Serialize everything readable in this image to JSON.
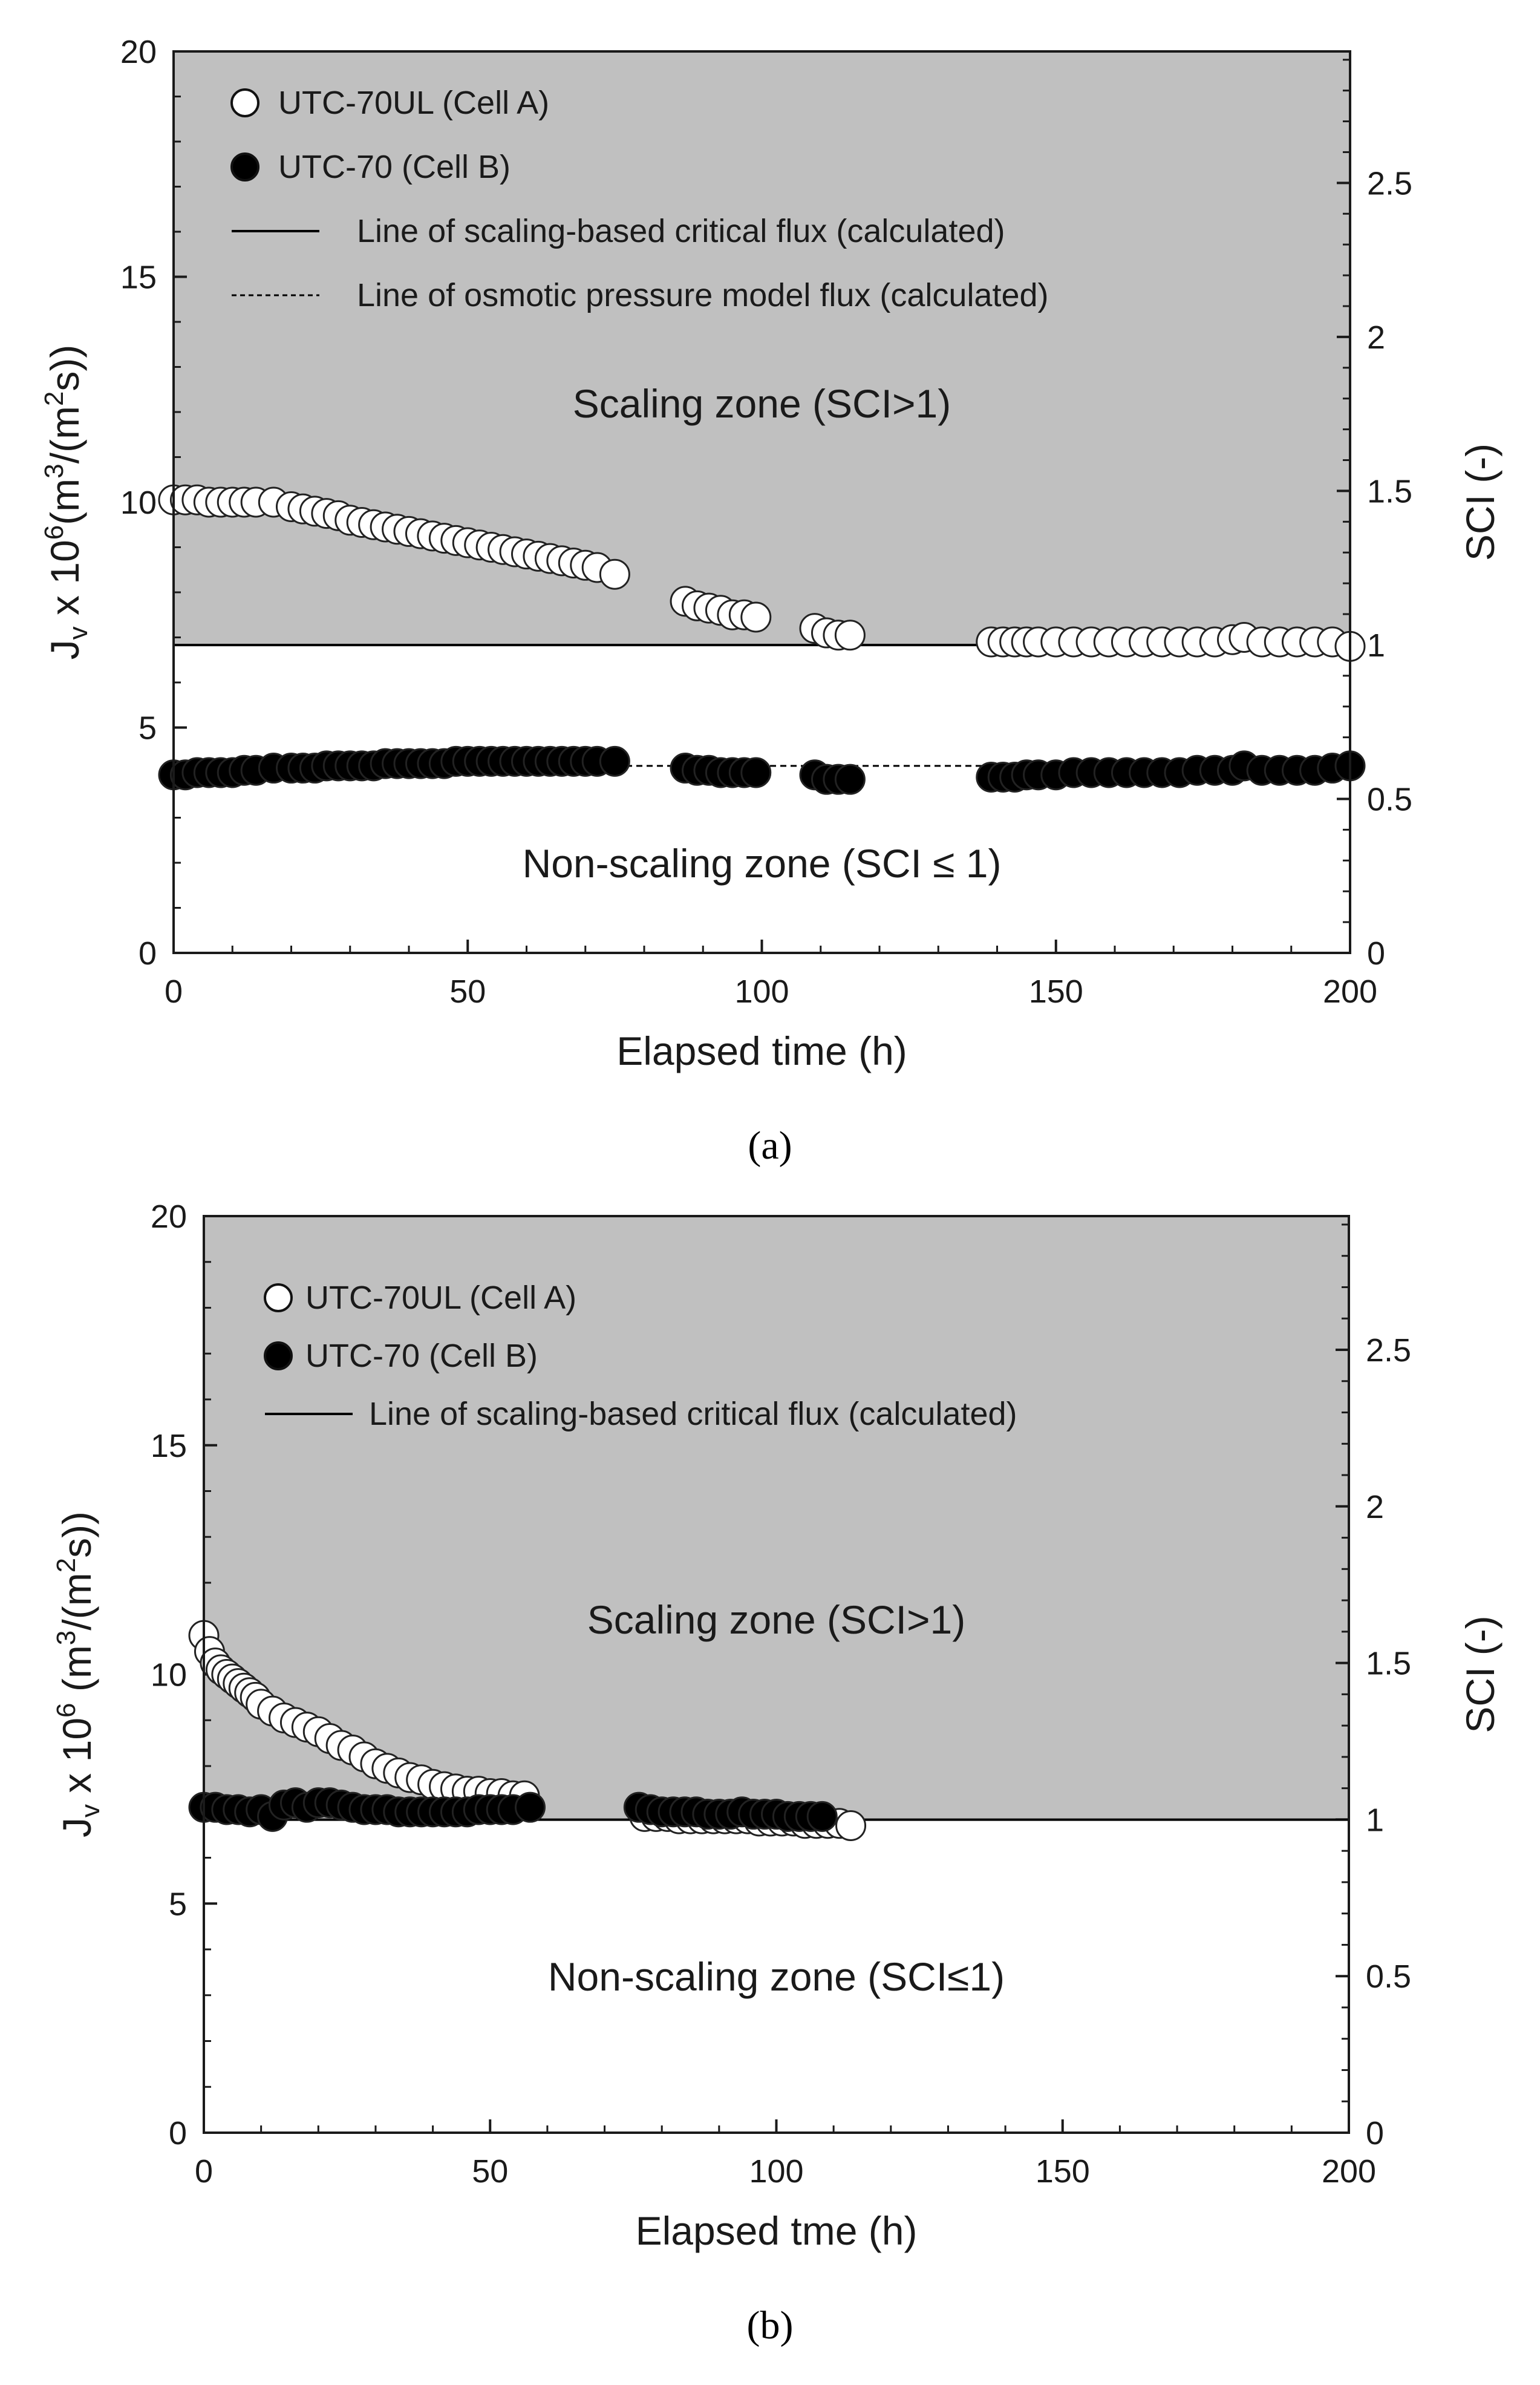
{
  "colors": {
    "scaling_zone": "#c0c0c0",
    "open_marker_fill": "#ffffff",
    "filled_marker_fill": "#000000",
    "axis": "#1a1a1a"
  },
  "chart_data": [
    {
      "panel": "a",
      "panel_label": "(a)",
      "type": "scatter",
      "xlabel": "Elapsed time (h)",
      "ylabel": "J_v x 10^6 (m^3/(m^2s))",
      "ylabel_parts": {
        "base": "J",
        "sub": "v",
        "mid": " x 10",
        "exp": "6",
        "unit_open": "(m",
        "unit_exp1": "3",
        "unit_mid": "/(m",
        "unit_exp2": "2",
        "unit_close": "s))"
      },
      "y2label": "SCI (-)",
      "xlim": [
        0,
        200
      ],
      "ylim": [
        0,
        20
      ],
      "y2lim": [
        0,
        2.927
      ],
      "xticks": [
        0,
        50,
        100,
        150,
        200
      ],
      "yticks": [
        0,
        5,
        10,
        15,
        20
      ],
      "y2ticks": [
        0,
        0.5,
        1,
        1.5,
        2,
        2.5
      ],
      "critical_flux": 6.83,
      "osmotic_flux": 4.15,
      "zone_labels": {
        "scaling": "Scaling zone (SCI>1)",
        "non_scaling": "Non-scaling zone (SCI ≤ 1​)"
      },
      "legend": [
        {
          "marker": "open",
          "label": "UTC-70UL (Cell A)"
        },
        {
          "marker": "filled",
          "label": "UTC-70 (Cell B)"
        },
        {
          "marker": "solid-line",
          "label": "Line of scaling-based critical flux (calculated)"
        },
        {
          "marker": "dashed-line",
          "label": "Line of osmotic pressure model flux (calculated)"
        }
      ],
      "series": [
        {
          "name": "UTC-70UL (Cell A)",
          "marker": "open",
          "x": [
            0,
            2,
            4,
            6,
            8,
            10,
            12,
            14,
            17,
            20,
            22,
            24,
            26,
            28,
            30,
            32,
            34,
            36,
            38,
            40,
            42,
            44,
            46,
            48,
            50,
            52,
            54,
            56,
            58,
            60,
            62,
            64,
            66,
            68,
            70,
            72,
            75,
            87,
            89,
            91,
            93,
            95,
            97,
            99,
            109,
            111,
            113,
            115,
            139,
            141,
            143,
            145,
            147,
            150,
            153,
            156,
            159,
            162,
            165,
            168,
            171,
            174,
            177,
            180,
            182,
            185,
            188,
            191,
            194,
            197,
            200
          ],
          "y": [
            10.05,
            10.05,
            10.05,
            10.0,
            10.0,
            10.0,
            10.0,
            10.0,
            10.0,
            9.9,
            9.85,
            9.8,
            9.75,
            9.7,
            9.6,
            9.55,
            9.5,
            9.45,
            9.4,
            9.35,
            9.3,
            9.25,
            9.2,
            9.15,
            9.1,
            9.05,
            9.0,
            8.95,
            8.9,
            8.85,
            8.8,
            8.75,
            8.7,
            8.65,
            8.6,
            8.55,
            8.4,
            7.8,
            7.7,
            7.65,
            7.6,
            7.5,
            7.5,
            7.45,
            7.2,
            7.1,
            7.05,
            7.05,
            6.9,
            6.9,
            6.9,
            6.9,
            6.9,
            6.9,
            6.9,
            6.9,
            6.9,
            6.9,
            6.9,
            6.9,
            6.9,
            6.9,
            6.9,
            6.95,
            7.0,
            6.9,
            6.9,
            6.9,
            6.9,
            6.9,
            6.8
          ]
        },
        {
          "name": "UTC-70 (Cell B)",
          "marker": "filled",
          "x": [
            0,
            2,
            4,
            6,
            8,
            10,
            12,
            14,
            17,
            20,
            22,
            24,
            26,
            28,
            30,
            32,
            34,
            36,
            38,
            40,
            42,
            44,
            46,
            48,
            50,
            52,
            54,
            56,
            58,
            60,
            62,
            64,
            66,
            68,
            70,
            72,
            75,
            87,
            89,
            91,
            93,
            95,
            97,
            99,
            109,
            111,
            113,
            115,
            139,
            141,
            143,
            145,
            147,
            150,
            153,
            156,
            159,
            162,
            165,
            168,
            171,
            174,
            177,
            180,
            182,
            185,
            188,
            191,
            194,
            197,
            200
          ],
          "y": [
            3.95,
            3.95,
            4.0,
            4.0,
            4.0,
            4.0,
            4.05,
            4.05,
            4.1,
            4.1,
            4.1,
            4.1,
            4.15,
            4.15,
            4.15,
            4.15,
            4.15,
            4.2,
            4.2,
            4.2,
            4.2,
            4.2,
            4.2,
            4.25,
            4.25,
            4.25,
            4.25,
            4.25,
            4.25,
            4.25,
            4.25,
            4.25,
            4.25,
            4.25,
            4.25,
            4.25,
            4.25,
            4.1,
            4.05,
            4.05,
            4.0,
            4.0,
            4.0,
            4.0,
            3.95,
            3.85,
            3.85,
            3.85,
            3.9,
            3.9,
            3.9,
            3.95,
            3.95,
            3.95,
            4.0,
            4.0,
            4.0,
            4.0,
            4.0,
            4.0,
            4.0,
            4.05,
            4.05,
            4.05,
            4.15,
            4.05,
            4.05,
            4.05,
            4.05,
            4.1,
            4.15
          ]
        }
      ]
    },
    {
      "panel": "b",
      "panel_label": "(b)",
      "type": "scatter",
      "xlabel": "Elapsed tme (h)",
      "ylabel": "J_v x 10^6 (m^3/(m^2s))",
      "ylabel_parts": {
        "base": "J",
        "sub": "v",
        "mid": " x 10",
        "exp": "6",
        "unit_open": " (m",
        "unit_exp1": "3",
        "unit_mid": "/(m",
        "unit_exp2": "2",
        "unit_close": "s))"
      },
      "y2label": "SCI (-)",
      "xlim": [
        0,
        200
      ],
      "ylim": [
        0,
        20
      ],
      "y2lim": [
        0,
        2.927
      ],
      "xticks": [
        0,
        50,
        100,
        150,
        200
      ],
      "yticks": [
        0,
        5,
        10,
        15,
        20
      ],
      "y2ticks": [
        0,
        0.5,
        1,
        1.5,
        2,
        2.5
      ],
      "critical_flux": 6.83,
      "osmotic_flux": null,
      "zone_labels": {
        "scaling": "Scaling zone (SCI>1)",
        "non_scaling": "Non-scaling zone (SCI≤1)"
      },
      "legend": [
        {
          "marker": "open",
          "label": "UTC-70UL (Cell A)"
        },
        {
          "marker": "filled",
          "label": "UTC-70 (Cell B)"
        },
        {
          "marker": "solid-line",
          "label": "Line of scaling-based critical flux (calculated)"
        }
      ],
      "series": [
        {
          "name": "UTC-70UL (Cell A)",
          "marker": "open",
          "x": [
            0,
            1,
            2,
            3,
            4,
            5,
            6,
            7,
            8,
            9,
            10,
            12,
            14,
            16,
            18,
            20,
            22,
            24,
            26,
            28,
            30,
            32,
            34,
            36,
            38,
            40,
            42,
            44,
            46,
            48,
            50,
            52,
            54,
            56,
            77,
            79,
            81,
            83,
            85,
            87,
            89,
            91,
            93,
            95,
            97,
            99,
            101,
            103,
            105,
            107,
            109,
            111,
            113
          ],
          "y": [
            10.85,
            10.5,
            10.25,
            10.1,
            10.0,
            9.9,
            9.8,
            9.7,
            9.6,
            9.5,
            9.35,
            9.2,
            9.05,
            8.95,
            8.85,
            8.75,
            8.6,
            8.45,
            8.35,
            8.2,
            8.05,
            7.95,
            7.85,
            7.75,
            7.7,
            7.6,
            7.55,
            7.5,
            7.45,
            7.45,
            7.4,
            7.4,
            7.35,
            7.35,
            6.9,
            6.9,
            6.9,
            6.85,
            6.85,
            6.85,
            6.85,
            6.85,
            6.85,
            6.85,
            6.8,
            6.8,
            6.8,
            6.8,
            6.75,
            6.75,
            6.75,
            6.75,
            6.7
          ]
        },
        {
          "name": "UTC-70 (Cell B)",
          "marker": "filled",
          "x": [
            0,
            2,
            4,
            6,
            8,
            10,
            12,
            14,
            16,
            18,
            20,
            22,
            24,
            26,
            28,
            30,
            32,
            34,
            36,
            38,
            40,
            42,
            44,
            46,
            48,
            50,
            52,
            54,
            57,
            76,
            78,
            80,
            82,
            84,
            86,
            88,
            90,
            92,
            94,
            96,
            98,
            100,
            102,
            104,
            106,
            108
          ],
          "y": [
            7.1,
            7.1,
            7.05,
            7.05,
            7.0,
            7.05,
            6.9,
            7.15,
            7.2,
            7.1,
            7.2,
            7.2,
            7.15,
            7.1,
            7.05,
            7.05,
            7.05,
            7.0,
            7.0,
            7.0,
            7.0,
            7.0,
            7.0,
            7.0,
            7.05,
            7.05,
            7.05,
            7.05,
            7.1,
            7.1,
            7.05,
            7.0,
            7.0,
            7.0,
            7.0,
            6.95,
            6.95,
            6.95,
            7.0,
            6.95,
            6.95,
            6.95,
            6.9,
            6.9,
            6.9,
            6.9
          ]
        }
      ]
    }
  ]
}
